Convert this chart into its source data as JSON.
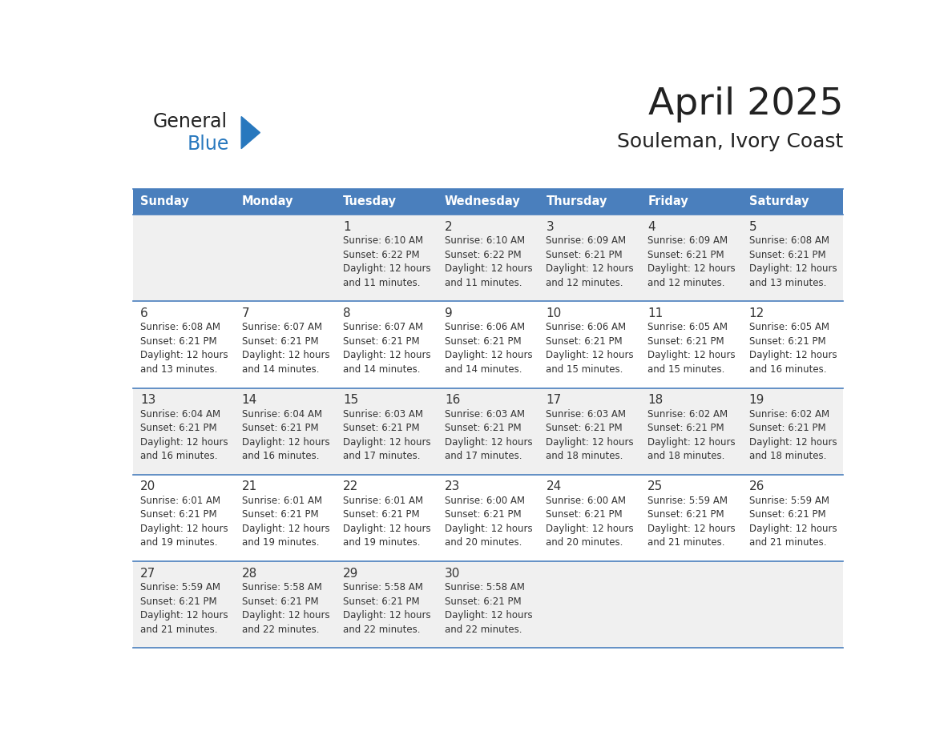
{
  "title": "April 2025",
  "subtitle": "Souleman, Ivory Coast",
  "days_of_week": [
    "Sunday",
    "Monday",
    "Tuesday",
    "Wednesday",
    "Thursday",
    "Friday",
    "Saturday"
  ],
  "header_bg": "#4a7fbd",
  "header_text": "#FFFFFF",
  "cell_bg_odd": "#f0f0f0",
  "cell_bg_even": "#FFFFFF",
  "border_color": "#4a7fbd",
  "day_number_color": "#333333",
  "cell_text_color": "#333333",
  "title_color": "#222222",
  "subtitle_color": "#222222",
  "logo_general_color": "#222222",
  "logo_blue_color": "#2878be",
  "weeks": [
    [
      {
        "day": "",
        "info": ""
      },
      {
        "day": "",
        "info": ""
      },
      {
        "day": "1",
        "info": "Sunrise: 6:10 AM\nSunset: 6:22 PM\nDaylight: 12 hours\nand 11 minutes."
      },
      {
        "day": "2",
        "info": "Sunrise: 6:10 AM\nSunset: 6:22 PM\nDaylight: 12 hours\nand 11 minutes."
      },
      {
        "day": "3",
        "info": "Sunrise: 6:09 AM\nSunset: 6:21 PM\nDaylight: 12 hours\nand 12 minutes."
      },
      {
        "day": "4",
        "info": "Sunrise: 6:09 AM\nSunset: 6:21 PM\nDaylight: 12 hours\nand 12 minutes."
      },
      {
        "day": "5",
        "info": "Sunrise: 6:08 AM\nSunset: 6:21 PM\nDaylight: 12 hours\nand 13 minutes."
      }
    ],
    [
      {
        "day": "6",
        "info": "Sunrise: 6:08 AM\nSunset: 6:21 PM\nDaylight: 12 hours\nand 13 minutes."
      },
      {
        "day": "7",
        "info": "Sunrise: 6:07 AM\nSunset: 6:21 PM\nDaylight: 12 hours\nand 14 minutes."
      },
      {
        "day": "8",
        "info": "Sunrise: 6:07 AM\nSunset: 6:21 PM\nDaylight: 12 hours\nand 14 minutes."
      },
      {
        "day": "9",
        "info": "Sunrise: 6:06 AM\nSunset: 6:21 PM\nDaylight: 12 hours\nand 14 minutes."
      },
      {
        "day": "10",
        "info": "Sunrise: 6:06 AM\nSunset: 6:21 PM\nDaylight: 12 hours\nand 15 minutes."
      },
      {
        "day": "11",
        "info": "Sunrise: 6:05 AM\nSunset: 6:21 PM\nDaylight: 12 hours\nand 15 minutes."
      },
      {
        "day": "12",
        "info": "Sunrise: 6:05 AM\nSunset: 6:21 PM\nDaylight: 12 hours\nand 16 minutes."
      }
    ],
    [
      {
        "day": "13",
        "info": "Sunrise: 6:04 AM\nSunset: 6:21 PM\nDaylight: 12 hours\nand 16 minutes."
      },
      {
        "day": "14",
        "info": "Sunrise: 6:04 AM\nSunset: 6:21 PM\nDaylight: 12 hours\nand 16 minutes."
      },
      {
        "day": "15",
        "info": "Sunrise: 6:03 AM\nSunset: 6:21 PM\nDaylight: 12 hours\nand 17 minutes."
      },
      {
        "day": "16",
        "info": "Sunrise: 6:03 AM\nSunset: 6:21 PM\nDaylight: 12 hours\nand 17 minutes."
      },
      {
        "day": "17",
        "info": "Sunrise: 6:03 AM\nSunset: 6:21 PM\nDaylight: 12 hours\nand 18 minutes."
      },
      {
        "day": "18",
        "info": "Sunrise: 6:02 AM\nSunset: 6:21 PM\nDaylight: 12 hours\nand 18 minutes."
      },
      {
        "day": "19",
        "info": "Sunrise: 6:02 AM\nSunset: 6:21 PM\nDaylight: 12 hours\nand 18 minutes."
      }
    ],
    [
      {
        "day": "20",
        "info": "Sunrise: 6:01 AM\nSunset: 6:21 PM\nDaylight: 12 hours\nand 19 minutes."
      },
      {
        "day": "21",
        "info": "Sunrise: 6:01 AM\nSunset: 6:21 PM\nDaylight: 12 hours\nand 19 minutes."
      },
      {
        "day": "22",
        "info": "Sunrise: 6:01 AM\nSunset: 6:21 PM\nDaylight: 12 hours\nand 19 minutes."
      },
      {
        "day": "23",
        "info": "Sunrise: 6:00 AM\nSunset: 6:21 PM\nDaylight: 12 hours\nand 20 minutes."
      },
      {
        "day": "24",
        "info": "Sunrise: 6:00 AM\nSunset: 6:21 PM\nDaylight: 12 hours\nand 20 minutes."
      },
      {
        "day": "25",
        "info": "Sunrise: 5:59 AM\nSunset: 6:21 PM\nDaylight: 12 hours\nand 21 minutes."
      },
      {
        "day": "26",
        "info": "Sunrise: 5:59 AM\nSunset: 6:21 PM\nDaylight: 12 hours\nand 21 minutes."
      }
    ],
    [
      {
        "day": "27",
        "info": "Sunrise: 5:59 AM\nSunset: 6:21 PM\nDaylight: 12 hours\nand 21 minutes."
      },
      {
        "day": "28",
        "info": "Sunrise: 5:58 AM\nSunset: 6:21 PM\nDaylight: 12 hours\nand 22 minutes."
      },
      {
        "day": "29",
        "info": "Sunrise: 5:58 AM\nSunset: 6:21 PM\nDaylight: 12 hours\nand 22 minutes."
      },
      {
        "day": "30",
        "info": "Sunrise: 5:58 AM\nSunset: 6:21 PM\nDaylight: 12 hours\nand 22 minutes."
      },
      {
        "day": "",
        "info": ""
      },
      {
        "day": "",
        "info": ""
      },
      {
        "day": "",
        "info": ""
      }
    ]
  ]
}
